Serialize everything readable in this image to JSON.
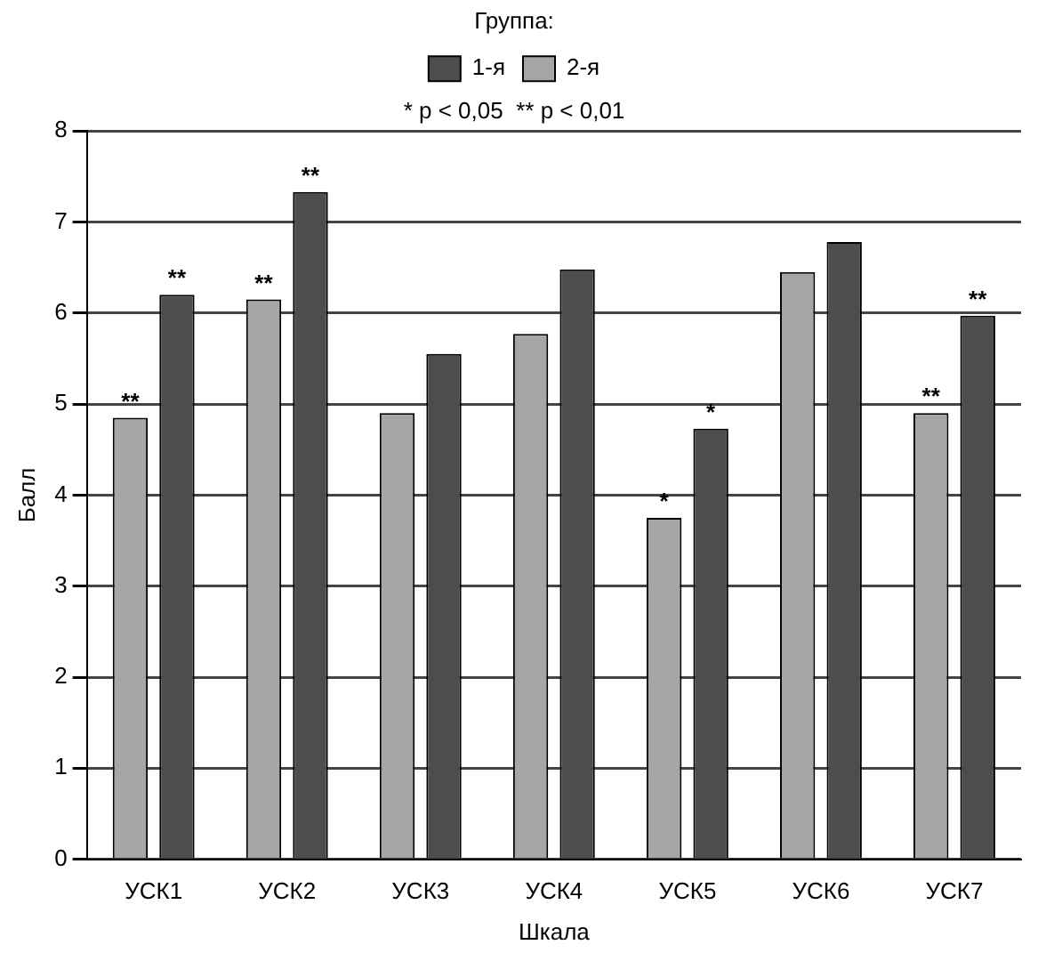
{
  "chart_data": {
    "type": "bar",
    "xlabel": "Шкала",
    "ylabel": "Балл",
    "legend_title": "Группа:",
    "legend": "top",
    "categories": [
      "УСК1",
      "УСК2",
      "УСК3",
      "УСК4",
      "УСК5",
      "УСК6",
      "УСК7"
    ],
    "series": [
      {
        "name": "1-я",
        "color": "#4d4d4d",
        "values": [
          6.2,
          7.33,
          5.55,
          6.48,
          4.73,
          6.78,
          5.97
        ]
      },
      {
        "name": "2-я",
        "color": "#a6a6a6",
        "values": [
          4.85,
          6.15,
          4.9,
          5.77,
          3.75,
          6.45,
          4.9
        ]
      }
    ],
    "ylim": [
      0,
      8
    ],
    "yticks": [
      0,
      1,
      2,
      3,
      4,
      5,
      6,
      7,
      8
    ],
    "grid": "y",
    "annotations": [
      "* p < 0,05  ** p < 0,01",
      {
        "text": "**",
        "x": "УСК1",
        "y": 4.85
      },
      {
        "text": "**",
        "x": "УСК1",
        "y": 6.2
      },
      {
        "text": "**",
        "x": "УСК2",
        "y": 6.15
      },
      {
        "text": "**",
        "x": "УСК2",
        "y": 7.33
      },
      {
        "text": "*",
        "x": "УСК5",
        "y": 3.75
      },
      {
        "text": "*",
        "x": "УСК5",
        "y": 4.73
      },
      {
        "text": "**",
        "x": "УСК7",
        "y": 4.9
      },
      {
        "text": "**",
        "x": "УСК7",
        "y": 5.97
      }
    ]
  }
}
